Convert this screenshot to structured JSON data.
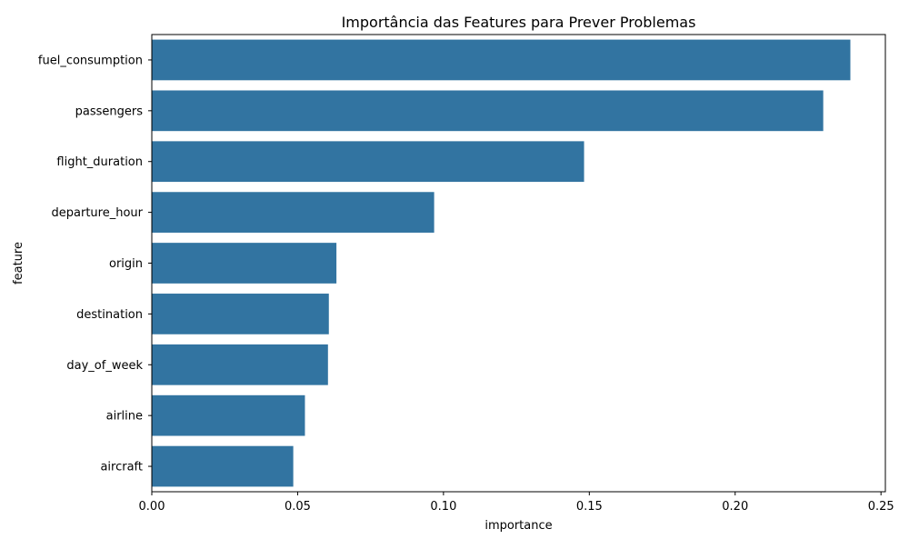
{
  "chart_data": {
    "type": "bar",
    "orientation": "horizontal",
    "title": "Importância das Features para Prever Problemas",
    "xlabel": "importance",
    "ylabel": "feature",
    "categories": [
      "fuel_consumption",
      "passengers",
      "flight_duration",
      "departure_hour",
      "origin",
      "destination",
      "day_of_week",
      "airline",
      "aircraft"
    ],
    "values": [
      0.2395,
      0.2302,
      0.1482,
      0.0968,
      0.0633,
      0.0607,
      0.0604,
      0.0525,
      0.0485
    ],
    "xlim": [
      0.0,
      0.2515
    ],
    "xticks": [
      0.0,
      0.05,
      0.1,
      0.15,
      0.2,
      0.25
    ],
    "xtick_labels": [
      "0.00",
      "0.05",
      "0.10",
      "0.15",
      "0.20",
      "0.25"
    ],
    "bar_color": "#3274a1",
    "grid": false
  }
}
